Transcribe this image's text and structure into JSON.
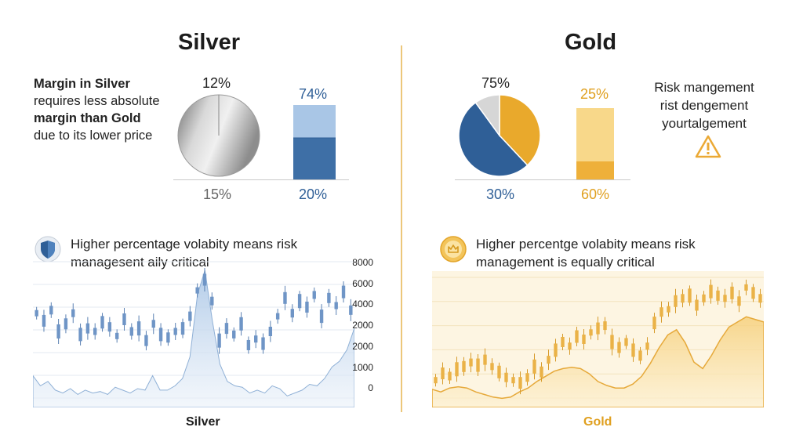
{
  "silver": {
    "title": "Silver",
    "description": {
      "line1": "Margin in Silver",
      "line2": "requires less absolute",
      "line3": "margin than Gold",
      "line4": "due to its lower price"
    },
    "pie_top_label": "12%",
    "pie_bottom_label": "15%",
    "bar_top_label": "74%",
    "bar_bottom_label": "20%",
    "volatility_note": {
      "line1": "Higher percentage volabity means risk",
      "line2": "managesent aily critical"
    },
    "y_ticks": [
      "8000",
      "6000",
      "4000",
      "2000",
      "2000",
      "1000",
      "0"
    ],
    "bottom_label": "Silver",
    "icon": "shield-icon"
  },
  "gold": {
    "title": "Gold",
    "pie_top_label": "75%",
    "pie_bottom_label": "30%",
    "bar_top_label": "25%",
    "bar_bottom_label": "60%",
    "risk_note": {
      "line1": "Risk mangement",
      "line2": "rist dengement",
      "line3": "yourtalgement"
    },
    "volatility_note": {
      "line1": "Higher percentge volabity means risk",
      "line2": "management is equally critical"
    },
    "bottom_label": "Gold",
    "icon": "gold-coin-icon",
    "warning_icon": "warning-icon"
  },
  "colors": {
    "silver_blue": "#2f5f97",
    "silver_light": "#a9c6e6",
    "gold": "#e9a92c",
    "gold_light": "#f6d27f",
    "silver_grey": "#c8c8c8"
  },
  "chart_data": [
    {
      "type": "pie",
      "name": "silver-pie",
      "title": "",
      "slices": [
        {
          "value": 100
        }
      ]
    },
    {
      "type": "bar",
      "name": "silver-bar",
      "title": "",
      "series": [
        {
          "values": [
            74
          ]
        },
        {
          "values": [
            20
          ]
        }
      ]
    },
    {
      "type": "pie",
      "name": "gold-pie",
      "title": "",
      "slices": [
        {
          "value": 38,
          "color": "#e9a92c"
        },
        {
          "value": 52,
          "color": "#2f5f97"
        },
        {
          "value": 10,
          "color": "#d6d6d6"
        }
      ]
    },
    {
      "type": "bar",
      "name": "gold-bar",
      "title": "",
      "series": [
        {
          "values": [
            25
          ]
        },
        {
          "values": [
            60
          ]
        }
      ]
    },
    {
      "type": "line",
      "name": "silver-volatility",
      "title": "",
      "ylim": [
        0,
        8000
      ],
      "y_ticks": [
        "8000",
        "6000",
        "4000",
        "2000",
        "2000",
        "1000",
        "0"
      ],
      "series": [
        {
          "type": "area",
          "values": [
            0.22,
            0.15,
            0.18,
            0.12,
            0.1,
            0.13,
            0.09,
            0.12,
            0.1,
            0.11,
            0.09,
            0.14,
            0.12,
            0.1,
            0.13,
            0.12,
            0.22,
            0.12,
            0.12,
            0.15,
            0.2,
            0.35,
            0.78,
            0.95,
            0.6,
            0.3,
            0.18,
            0.15,
            0.14,
            0.1,
            0.12,
            0.1,
            0.15,
            0.13,
            0.08,
            0.1,
            0.12,
            0.16,
            0.15,
            0.2,
            0.28,
            0.32,
            0.4,
            0.55
          ]
        },
        {
          "type": "candlestick",
          "values": [
            0.62,
            0.57,
            0.64,
            0.5,
            0.55,
            0.62,
            0.48,
            0.52,
            0.5,
            0.56,
            0.53,
            0.47,
            0.58,
            0.5,
            0.52,
            0.44,
            0.55,
            0.48,
            0.46,
            0.5,
            0.52,
            0.6,
            0.77,
            0.84,
            0.7,
            0.44,
            0.52,
            0.48,
            0.55,
            0.41,
            0.45,
            0.42,
            0.5,
            0.6,
            0.72,
            0.62,
            0.7,
            0.66,
            0.74,
            0.6,
            0.72,
            0.67,
            0.76,
            0.64
          ]
        }
      ]
    },
    {
      "type": "line",
      "name": "gold-volatility",
      "title": "",
      "series": [
        {
          "type": "area",
          "values": [
            0.14,
            0.12,
            0.15,
            0.16,
            0.15,
            0.12,
            0.1,
            0.08,
            0.07,
            0.08,
            0.12,
            0.15,
            0.2,
            0.24,
            0.28,
            0.3,
            0.31,
            0.3,
            0.26,
            0.2,
            0.17,
            0.15,
            0.15,
            0.18,
            0.24,
            0.34,
            0.46,
            0.56,
            0.6,
            0.5,
            0.35,
            0.3,
            0.4,
            0.52,
            0.62,
            0.66,
            0.7,
            0.68,
            0.66
          ]
        },
        {
          "type": "candlestick",
          "values": [
            0.2,
            0.25,
            0.23,
            0.28,
            0.3,
            0.33,
            0.31,
            0.35,
            0.3,
            0.26,
            0.22,
            0.2,
            0.18,
            0.22,
            0.3,
            0.26,
            0.35,
            0.42,
            0.48,
            0.45,
            0.52,
            0.5,
            0.55,
            0.58,
            0.6,
            0.48,
            0.44,
            0.48,
            0.42,
            0.38,
            0.45,
            0.62,
            0.7,
            0.72,
            0.78,
            0.8,
            0.82,
            0.75,
            0.8,
            0.85,
            0.82,
            0.8,
            0.84,
            0.78,
            0.88,
            0.84,
            0.8
          ]
        }
      ]
    }
  ]
}
